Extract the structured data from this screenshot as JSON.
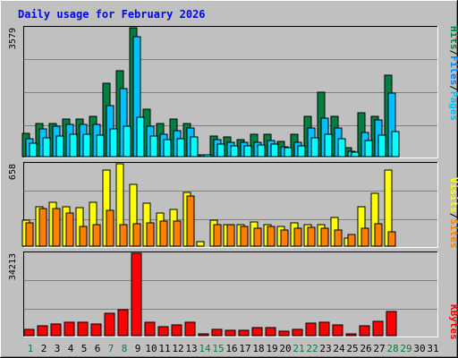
{
  "title": "Daily usage for February 2026",
  "colors": {
    "background": "#c0c0c0",
    "title": "#0000ff",
    "hits": "#008040",
    "files": "#00c0ff",
    "pages": "#00ffff",
    "visits": "#ffff00",
    "sites": "#ff8000",
    "kbytes": "#ff0000",
    "grid": "#808080",
    "weekday_day": "#000000",
    "weekend_day": "#008040"
  },
  "right_labels": {
    "top": [
      {
        "text": "Hits",
        "color": "#008040"
      },
      {
        "text": "/",
        "color": "#000000"
      },
      {
        "text": "Files",
        "color": "#0080ff"
      },
      {
        "text": "/",
        "color": "#000000"
      },
      {
        "text": "Pages",
        "color": "#00c0ff"
      }
    ],
    "middle": [
      {
        "text": "Visits",
        "color": "#ffff00"
      },
      {
        "text": "/",
        "color": "#000000"
      },
      {
        "text": "Sites",
        "color": "#ff8000"
      }
    ],
    "bottom": [
      {
        "text": "KBytes",
        "color": "#ff0000"
      }
    ]
  },
  "chart_data": [
    {
      "type": "bar",
      "panel": "hits-files-pages",
      "y_max_label": "3579",
      "ylim": [
        0,
        3579
      ],
      "x": [
        1,
        2,
        3,
        4,
        5,
        6,
        7,
        8,
        9,
        10,
        11,
        12,
        13,
        14,
        15,
        16,
        17,
        18,
        19,
        20,
        21,
        22,
        23,
        24,
        25,
        26,
        27,
        28,
        29,
        30,
        31
      ],
      "series": [
        {
          "name": "Hits",
          "values": [
            640,
            920,
            920,
            1050,
            1050,
            1130,
            2050,
            2390,
            3579,
            1320,
            920,
            1050,
            920,
            60,
            580,
            540,
            460,
            620,
            620,
            420,
            620,
            1130,
            1780,
            1130,
            240,
            1230,
            1130,
            2260,
            0,
            0,
            0
          ]
        },
        {
          "name": "Files",
          "values": [
            490,
            770,
            840,
            900,
            900,
            900,
            1420,
            1880,
            3330,
            850,
            630,
            720,
            800,
            20,
            480,
            400,
            400,
            390,
            450,
            280,
            400,
            790,
            1060,
            790,
            160,
            670,
            1020,
            1760,
            0,
            0,
            0
          ]
        },
        {
          "name": "Pages",
          "values": [
            380,
            520,
            560,
            610,
            610,
            590,
            760,
            840,
            1100,
            560,
            470,
            500,
            540,
            20,
            360,
            300,
            290,
            320,
            340,
            240,
            300,
            520,
            630,
            500,
            130,
            450,
            600,
            700,
            0,
            0,
            0
          ]
        }
      ]
    },
    {
      "type": "bar",
      "panel": "visits-sites",
      "y_max_label": "658",
      "ylim": [
        0,
        658
      ],
      "x": [
        1,
        2,
        3,
        4,
        5,
        6,
        7,
        8,
        9,
        10,
        11,
        12,
        13,
        14,
        15,
        16,
        17,
        18,
        19,
        20,
        21,
        22,
        23,
        24,
        25,
        26,
        27,
        28,
        29,
        30,
        31
      ],
      "series": [
        {
          "name": "Visits",
          "values": [
            210,
            318,
            354,
            318,
            311,
            354,
            608,
            658,
            495,
            340,
            262,
            290,
            432,
            35,
            208,
            170,
            170,
            191,
            170,
            155,
            184,
            170,
            170,
            228,
            65,
            318,
            425,
            608,
            0,
            0,
            0
          ]
        },
        {
          "name": "Sites",
          "values": [
            184,
            297,
            297,
            268,
            155,
            170,
            283,
            170,
            177,
            184,
            198,
            198,
            397,
            0,
            170,
            170,
            155,
            141,
            155,
            127,
            141,
            148,
            141,
            127,
            92,
            141,
            177,
            113,
            0,
            0,
            0
          ]
        }
      ]
    },
    {
      "type": "bar",
      "panel": "kbytes",
      "y_max_label": "34213",
      "ylim": [
        0,
        34213
      ],
      "x": [
        1,
        2,
        3,
        4,
        5,
        6,
        7,
        8,
        9,
        10,
        11,
        12,
        13,
        14,
        15,
        16,
        17,
        18,
        19,
        20,
        21,
        22,
        23,
        24,
        25,
        26,
        27,
        28,
        29,
        30,
        31
      ],
      "series": [
        {
          "name": "KBytes",
          "values": [
            2510,
            4100,
            4790,
            5700,
            5700,
            4790,
            9350,
            10950,
            34213,
            5700,
            3650,
            4450,
            5700,
            660,
            2510,
            2280,
            2280,
            3200,
            3200,
            1830,
            2500,
            5250,
            5700,
            4330,
            880,
            4100,
            5930,
            10040,
            0,
            0,
            0
          ]
        }
      ]
    }
  ],
  "x_labels": [
    {
      "d": "1",
      "weekend": true
    },
    {
      "d": "2",
      "weekend": false
    },
    {
      "d": "3",
      "weekend": false
    },
    {
      "d": "4",
      "weekend": false
    },
    {
      "d": "5",
      "weekend": false
    },
    {
      "d": "6",
      "weekend": false
    },
    {
      "d": "7",
      "weekend": true
    },
    {
      "d": "8",
      "weekend": true
    },
    {
      "d": "9",
      "weekend": false
    },
    {
      "d": "10",
      "weekend": false
    },
    {
      "d": "11",
      "weekend": false
    },
    {
      "d": "12",
      "weekend": false
    },
    {
      "d": "13",
      "weekend": false
    },
    {
      "d": "14",
      "weekend": true
    },
    {
      "d": "15",
      "weekend": true
    },
    {
      "d": "16",
      "weekend": false
    },
    {
      "d": "17",
      "weekend": false
    },
    {
      "d": "18",
      "weekend": false
    },
    {
      "d": "19",
      "weekend": false
    },
    {
      "d": "20",
      "weekend": false
    },
    {
      "d": "21",
      "weekend": true
    },
    {
      "d": "22",
      "weekend": true
    },
    {
      "d": "23",
      "weekend": false
    },
    {
      "d": "24",
      "weekend": false
    },
    {
      "d": "25",
      "weekend": false
    },
    {
      "d": "26",
      "weekend": false
    },
    {
      "d": "27",
      "weekend": false
    },
    {
      "d": "28",
      "weekend": true
    },
    {
      "d": "29",
      "weekend": true
    },
    {
      "d": "30",
      "weekend": false
    },
    {
      "d": "31",
      "weekend": false
    }
  ]
}
